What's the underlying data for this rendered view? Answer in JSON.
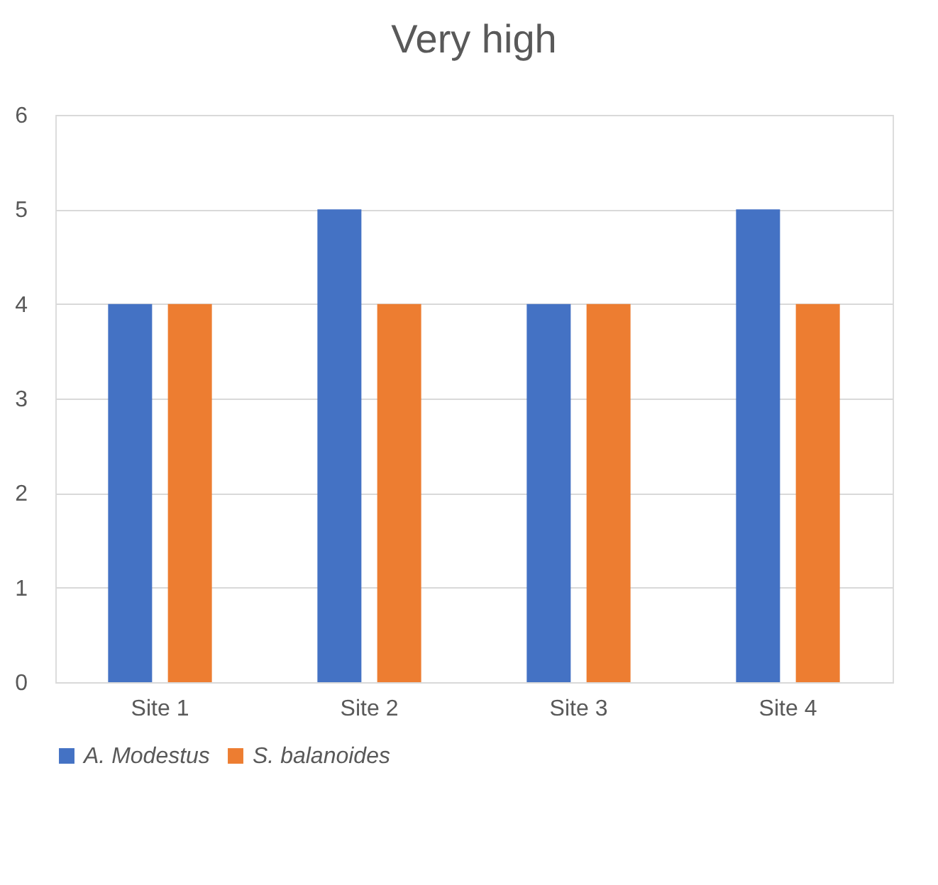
{
  "chart_data": {
    "type": "bar",
    "title": "Very high",
    "categories": [
      "Site 1",
      "Site 2",
      "Site 3",
      "Site 4"
    ],
    "series": [
      {
        "name": "A. Modestus",
        "color": "#4472c4",
        "values": [
          4,
          5,
          4,
          5
        ]
      },
      {
        "name": "S. balanoides",
        "color": "#ed7d31",
        "values": [
          4,
          4,
          4,
          4
        ]
      }
    ],
    "ylim": [
      0,
      6
    ],
    "yticks": [
      0,
      1,
      2,
      3,
      4,
      5,
      6
    ],
    "grid": "y",
    "legend": "bottom"
  }
}
